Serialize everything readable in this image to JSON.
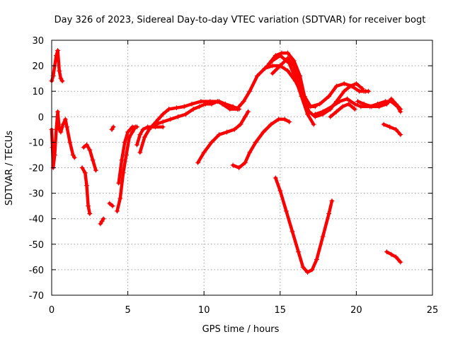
{
  "chart_data": {
    "type": "scatter",
    "title": "Day 326 of 2023, Sidereal Day-to-day VTEC variation (SDTVAR) for receiver bogt",
    "xlabel": "GPS time / hours",
    "ylabel": "SDTVAR / TECUs",
    "xlim": [
      0,
      25
    ],
    "ylim": [
      -70,
      30
    ],
    "xticks": [
      0,
      5,
      10,
      15,
      20,
      25
    ],
    "yticks": [
      -70,
      -60,
      -50,
      -40,
      -30,
      -20,
      -10,
      0,
      10,
      20,
      30
    ],
    "grid": true,
    "marker": "+",
    "color": "#ff0000",
    "series": [
      {
        "name": "arc01",
        "points": [
          [
            0.0,
            14
          ],
          [
            0.1,
            16
          ],
          [
            0.2,
            20
          ],
          [
            0.3,
            24
          ],
          [
            0.4,
            26
          ],
          [
            0.5,
            18
          ],
          [
            0.6,
            15
          ],
          [
            0.7,
            14
          ]
        ]
      },
      {
        "name": "arc02",
        "points": [
          [
            0.0,
            -5
          ],
          [
            0.05,
            -12
          ],
          [
            0.1,
            -20
          ],
          [
            0.2,
            -15
          ],
          [
            0.3,
            -5
          ],
          [
            0.4,
            2
          ],
          [
            0.5,
            -5
          ],
          [
            0.6,
            -6
          ],
          [
            0.75,
            -3
          ],
          [
            0.9,
            -1
          ],
          [
            1.0,
            -4
          ],
          [
            1.2,
            -10
          ],
          [
            1.4,
            -15
          ],
          [
            1.5,
            -16
          ]
        ]
      },
      {
        "name": "arc03",
        "points": [
          [
            2.0,
            -20
          ],
          [
            2.2,
            -22
          ],
          [
            2.3,
            -27
          ],
          [
            2.4,
            -35
          ],
          [
            2.5,
            -38
          ]
        ]
      },
      {
        "name": "arc04",
        "points": [
          [
            2.1,
            -12
          ],
          [
            2.3,
            -11
          ],
          [
            2.5,
            -13
          ],
          [
            2.7,
            -17
          ],
          [
            2.9,
            -21
          ]
        ]
      },
      {
        "name": "arc05",
        "points": [
          [
            3.2,
            -42
          ],
          [
            3.3,
            -41
          ],
          [
            3.4,
            -40
          ]
        ]
      },
      {
        "name": "arc06",
        "points": [
          [
            3.8,
            -34
          ],
          [
            4.0,
            -35
          ]
        ]
      },
      {
        "name": "arc07",
        "points": [
          [
            3.95,
            -5
          ],
          [
            4.05,
            -4
          ]
        ]
      },
      {
        "name": "arc08",
        "points": [
          [
            4.3,
            -37
          ],
          [
            4.5,
            -32
          ],
          [
            4.7,
            -22
          ],
          [
            4.9,
            -15
          ],
          [
            5.1,
            -8
          ],
          [
            5.3,
            -6
          ],
          [
            5.5,
            -4
          ]
        ]
      },
      {
        "name": "arc09",
        "points": [
          [
            4.4,
            -26
          ],
          [
            4.6,
            -17
          ],
          [
            4.8,
            -10
          ],
          [
            5.0,
            -6
          ],
          [
            5.3,
            -4
          ],
          [
            5.6,
            -4
          ]
        ]
      },
      {
        "name": "arc10",
        "points": [
          [
            5.6,
            -11
          ],
          [
            5.8,
            -7
          ],
          [
            6.0,
            -5
          ],
          [
            6.3,
            -4
          ],
          [
            6.8,
            -4
          ],
          [
            7.3,
            -4
          ]
        ]
      },
      {
        "name": "arc11",
        "points": [
          [
            5.8,
            -14
          ],
          [
            6.1,
            -8
          ],
          [
            6.4,
            -5
          ],
          [
            6.7,
            -3
          ],
          [
            7.0,
            -1
          ],
          [
            7.3,
            1
          ],
          [
            7.7,
            3
          ],
          [
            8.2,
            3.5
          ],
          [
            8.7,
            4
          ],
          [
            9.2,
            5
          ],
          [
            9.8,
            6
          ],
          [
            10.4,
            6
          ],
          [
            11.0,
            6
          ],
          [
            11.4,
            5
          ],
          [
            11.9,
            4
          ],
          [
            12.3,
            3
          ]
        ]
      },
      {
        "name": "arc12",
        "points": [
          [
            6.8,
            -3
          ],
          [
            7.3,
            -2
          ],
          [
            7.8,
            -1
          ],
          [
            8.3,
            0
          ],
          [
            8.8,
            1
          ],
          [
            9.3,
            3
          ],
          [
            9.7,
            4
          ],
          [
            10.1,
            5
          ],
          [
            10.5,
            5
          ],
          [
            10.9,
            6
          ],
          [
            11.2,
            5
          ],
          [
            11.7,
            3
          ],
          [
            12.2,
            3
          ]
        ]
      },
      {
        "name": "arc13",
        "points": [
          [
            9.6,
            -18
          ],
          [
            10.0,
            -14
          ],
          [
            10.5,
            -10
          ],
          [
            11.0,
            -7
          ],
          [
            11.5,
            -6
          ],
          [
            12.0,
            -5
          ],
          [
            12.4,
            -3
          ],
          [
            12.7,
            0
          ],
          [
            12.9,
            2
          ]
        ]
      },
      {
        "name": "arc14",
        "points": [
          [
            11.9,
            -19
          ],
          [
            12.3,
            -20
          ],
          [
            12.7,
            -18
          ],
          [
            13.0,
            -14
          ],
          [
            13.4,
            -10
          ],
          [
            13.9,
            -6
          ],
          [
            14.4,
            -3
          ],
          [
            14.9,
            -1
          ],
          [
            15.3,
            -1
          ],
          [
            15.6,
            -2
          ]
        ]
      },
      {
        "name": "arc15",
        "points": [
          [
            12.3,
            4
          ],
          [
            12.6,
            6
          ],
          [
            13.0,
            10
          ],
          [
            13.5,
            16
          ],
          [
            14.0,
            19
          ],
          [
            14.5,
            20
          ],
          [
            15.0,
            20
          ],
          [
            15.5,
            18
          ],
          [
            16.0,
            14
          ],
          [
            16.5,
            8
          ],
          [
            16.8,
            4
          ],
          [
            17.3,
            4
          ]
        ]
      },
      {
        "name": "arc16",
        "points": [
          [
            14.5,
            17
          ],
          [
            15.0,
            20
          ],
          [
            15.5,
            23
          ],
          [
            15.9,
            20
          ],
          [
            16.3,
            12
          ],
          [
            16.6,
            6
          ],
          [
            16.9,
            2
          ],
          [
            17.3,
            0
          ],
          [
            17.8,
            1
          ],
          [
            18.3,
            3
          ],
          [
            18.7,
            6
          ],
          [
            19.2,
            10
          ],
          [
            19.6,
            12
          ],
          [
            20.0,
            13
          ],
          [
            20.4,
            11
          ]
        ]
      },
      {
        "name": "arc17",
        "points": [
          [
            14.3,
            21
          ],
          [
            14.7,
            24
          ],
          [
            15.1,
            25
          ],
          [
            15.5,
            25
          ],
          [
            15.9,
            22
          ],
          [
            16.3,
            16
          ],
          [
            16.6,
            8
          ],
          [
            17.0,
            4
          ],
          [
            17.6,
            5
          ],
          [
            18.2,
            8
          ],
          [
            18.7,
            12
          ],
          [
            19.2,
            13
          ],
          [
            19.7,
            12
          ],
          [
            20.2,
            10
          ],
          [
            20.5,
            10
          ]
        ]
      },
      {
        "name": "arc18",
        "points": [
          [
            14.0,
            19
          ],
          [
            14.5,
            22
          ],
          [
            15.0,
            24
          ],
          [
            15.6,
            21
          ],
          [
            16.0,
            15
          ],
          [
            16.4,
            8
          ],
          [
            16.8,
            1
          ],
          [
            17.2,
            -3
          ]
        ]
      },
      {
        "name": "arc19",
        "points": [
          [
            17.3,
            1
          ],
          [
            17.8,
            2
          ],
          [
            18.4,
            4
          ],
          [
            18.9,
            6
          ],
          [
            19.4,
            7
          ],
          [
            19.9,
            5
          ],
          [
            20.3,
            4
          ],
          [
            20.9,
            4
          ],
          [
            21.4,
            5
          ],
          [
            21.9,
            6
          ],
          [
            22.3,
            6
          ],
          [
            22.7,
            4
          ],
          [
            22.9,
            2
          ]
        ]
      },
      {
        "name": "arc20",
        "points": [
          [
            18.3,
            0
          ],
          [
            18.7,
            2
          ],
          [
            19.1,
            4
          ],
          [
            19.5,
            5
          ],
          [
            19.9,
            3
          ]
        ]
      },
      {
        "name": "arc21",
        "points": [
          [
            20.1,
            6
          ],
          [
            20.5,
            5
          ],
          [
            21.0,
            4
          ],
          [
            21.5,
            4
          ],
          [
            22.0,
            5
          ],
          [
            22.3,
            7
          ],
          [
            22.6,
            5
          ],
          [
            22.9,
            3
          ]
        ]
      },
      {
        "name": "arc22",
        "points": [
          [
            20.6,
            10
          ],
          [
            20.8,
            10
          ]
        ]
      },
      {
        "name": "arc23",
        "points": [
          [
            21.8,
            -3
          ],
          [
            22.2,
            -4
          ],
          [
            22.6,
            -5
          ],
          [
            22.9,
            -7
          ]
        ]
      },
      {
        "name": "arc24",
        "points": [
          [
            14.7,
            -24
          ],
          [
            15.0,
            -29
          ],
          [
            15.4,
            -37
          ],
          [
            15.8,
            -45
          ],
          [
            16.2,
            -53
          ],
          [
            16.5,
            -59
          ],
          [
            16.8,
            -61
          ],
          [
            17.1,
            -60
          ],
          [
            17.4,
            -56
          ],
          [
            17.8,
            -47
          ],
          [
            18.2,
            -38
          ],
          [
            18.4,
            -33
          ]
        ]
      },
      {
        "name": "arc25",
        "points": [
          [
            22.0,
            -53
          ],
          [
            22.3,
            -54
          ],
          [
            22.6,
            -55
          ],
          [
            22.9,
            -57
          ]
        ]
      }
    ]
  }
}
